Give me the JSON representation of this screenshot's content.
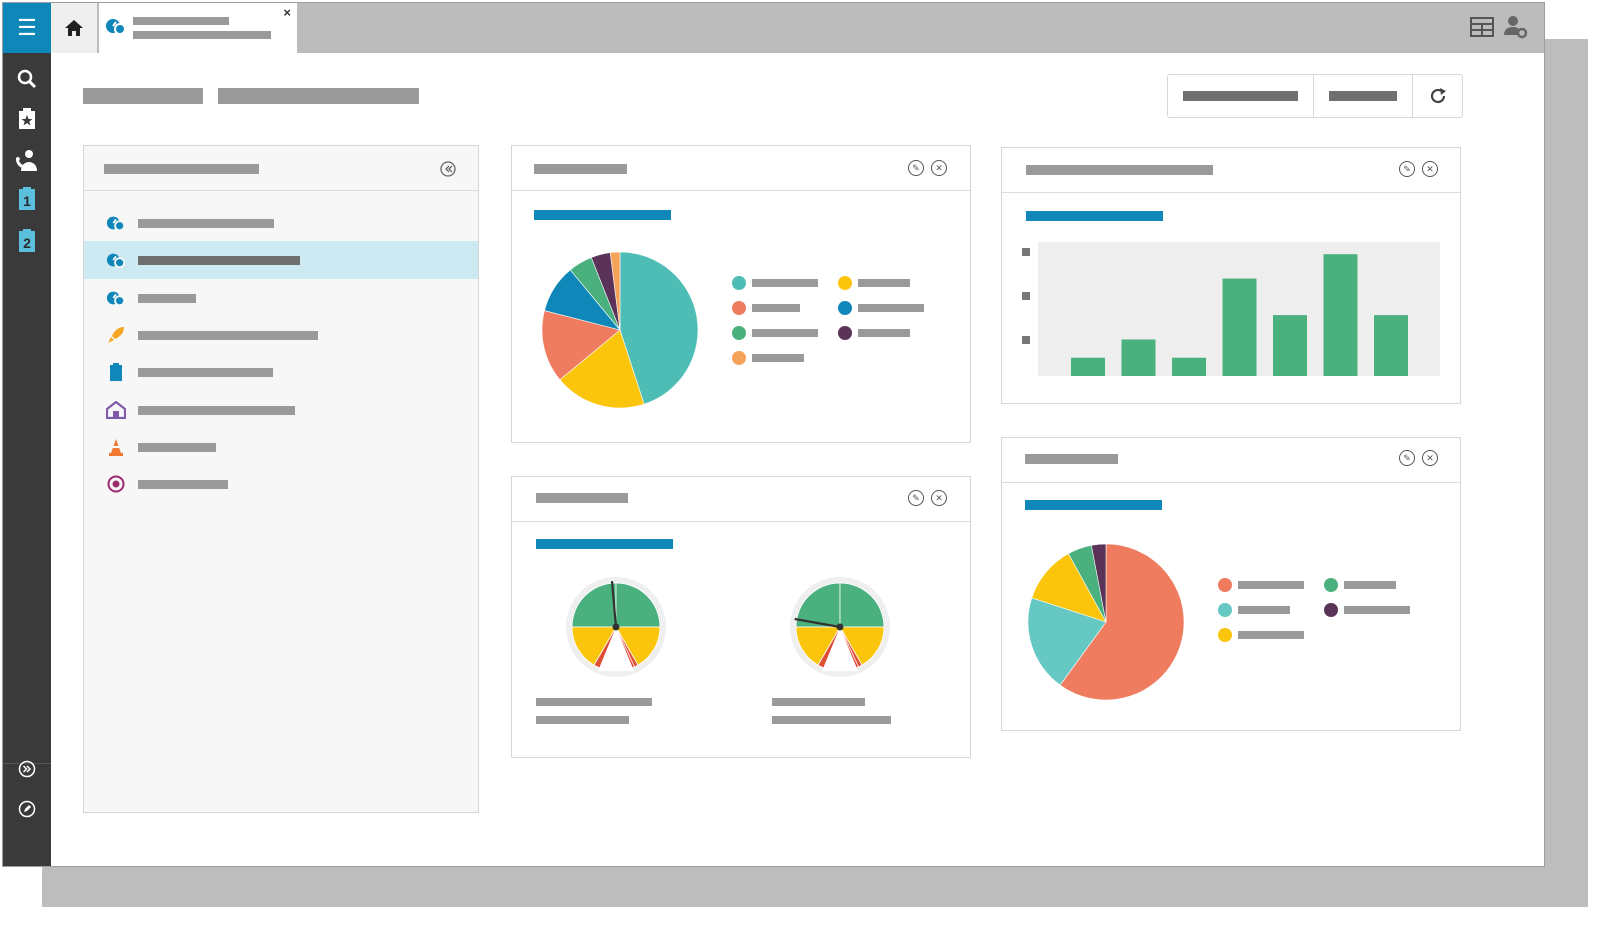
{
  "app": {
    "menu_icon": "hamburger-icon",
    "doc_tab_close": "×",
    "rail_badges": [
      "1",
      "2"
    ],
    "colors": {
      "accent": "#0f87b8",
      "rail": "#3a3a3a",
      "selected_row": "#cde9f1",
      "topbar": "#bcbcbc"
    }
  },
  "rail": {
    "items": [
      "search-icon",
      "starred-clipboard-icon",
      "phone-user-icon",
      "calendar-1-icon",
      "calendar-2-icon"
    ],
    "bottom": [
      "expand-icon",
      "edit-icon"
    ]
  },
  "sidebar": {
    "items": [
      {
        "icon": "gauge-icon",
        "color": "#0f87b8"
      },
      {
        "icon": "gauge-icon",
        "color": "#0f87b8",
        "selected": true
      },
      {
        "icon": "gauge-icon",
        "color": "#0f87b8"
      },
      {
        "icon": "rocket-icon",
        "color": "#f5a623"
      },
      {
        "icon": "clipboard-icon",
        "color": "#0f87b8"
      },
      {
        "icon": "house-icon",
        "color": "#7e5aa8"
      },
      {
        "icon": "cone-icon",
        "color": "#f07a32"
      },
      {
        "icon": "target-icon",
        "color": "#9b2c6e"
      }
    ]
  },
  "widgets": {
    "pie1": {
      "slices": [
        {
          "color": "#4dbdb6",
          "value": 45
        },
        {
          "color": "#fbc50c",
          "value": 19
        },
        {
          "color": "#ef7c5f",
          "value": 15
        },
        {
          "color": "#0f87b8",
          "value": 10
        },
        {
          "color": "#4ab17e",
          "value": 5
        },
        {
          "color": "#5b3358",
          "value": 4
        },
        {
          "color": "#f6a35a",
          "value": 2
        }
      ],
      "legend_colors": [
        "#4dbdb6",
        "#fbc50c",
        "#ef7c5f",
        "#0f87b8",
        "#4ab17e",
        "#5b3358",
        "#f6a35a"
      ]
    },
    "bars": {
      "values": [
        3,
        6,
        3,
        16,
        10,
        20,
        10
      ],
      "color": "#4ab17e"
    },
    "gauges": [
      {
        "needle_deg": -5
      },
      {
        "needle_deg": -80
      }
    ],
    "pie2": {
      "slices": [
        {
          "color": "#ef7c5f",
          "value": 60
        },
        {
          "color": "#66c8c3",
          "value": 20
        },
        {
          "color": "#fbc50c",
          "value": 12
        },
        {
          "color": "#4ab17e",
          "value": 5
        },
        {
          "color": "#5b3358",
          "value": 3
        }
      ],
      "legend_colors": [
        "#ef7c5f",
        "#4ab17e",
        "#66c8c3",
        "#5b3358",
        "#fbc50c"
      ]
    }
  },
  "chart_data": [
    {
      "type": "pie",
      "values": [
        45,
        19,
        15,
        10,
        5,
        4,
        2
      ]
    },
    {
      "type": "bar",
      "values": [
        3,
        6,
        3,
        16,
        10,
        20,
        10
      ]
    },
    {
      "type": "pie",
      "values": [
        60,
        20,
        12,
        5,
        3
      ]
    }
  ]
}
